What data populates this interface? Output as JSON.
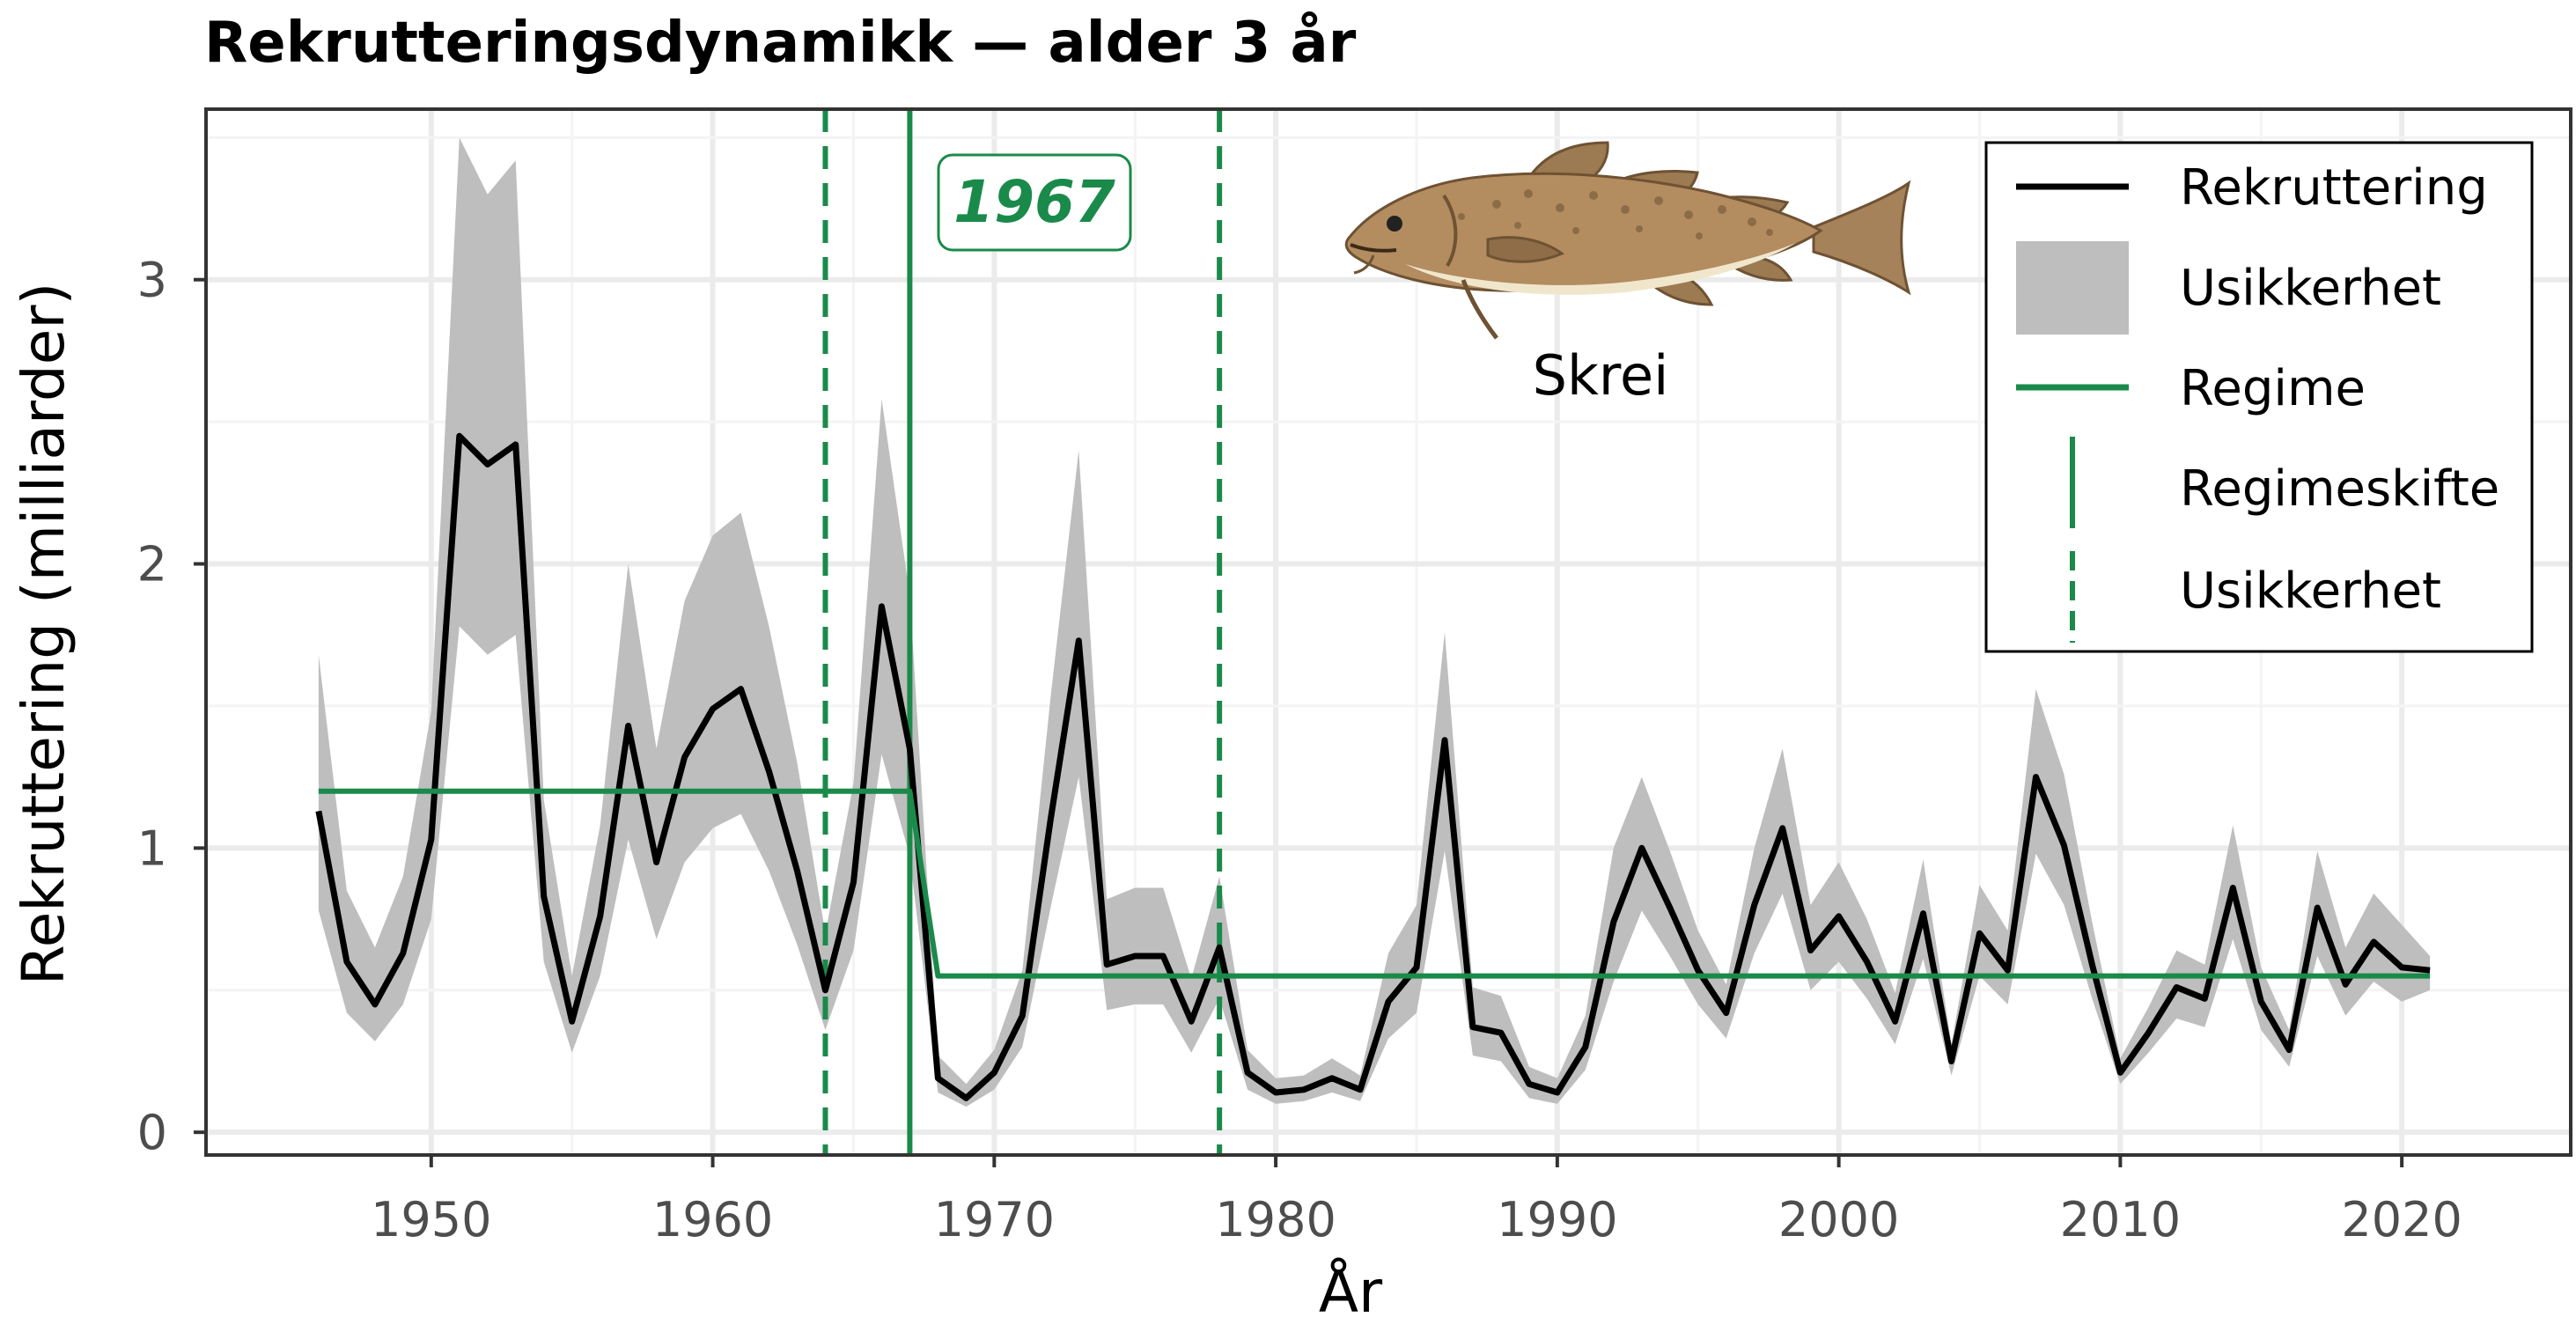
{
  "chart_data": {
    "type": "line",
    "title": "Rekrutteringsdynamikk — alder 3 år",
    "xlabel": "År",
    "ylabel": "Rekruttering (milliarder)",
    "xlim": [
      1942,
      2026
    ],
    "ylim": [
      -0.08,
      3.6
    ],
    "x_ticks": [
      1950,
      1960,
      1970,
      1980,
      1990,
      2000,
      2010,
      2020
    ],
    "y_ticks": [
      0,
      1,
      2,
      3
    ],
    "grid": true,
    "legend_position": "top-right",
    "series": [
      {
        "name": "Rekruttering",
        "color": "#000000",
        "x": [
          1946,
          1947,
          1948,
          1949,
          1950,
          1951,
          1952,
          1953,
          1954,
          1955,
          1956,
          1957,
          1958,
          1959,
          1960,
          1961,
          1962,
          1963,
          1964,
          1965,
          1966,
          1967,
          1968,
          1969,
          1970,
          1971,
          1972,
          1973,
          1974,
          1975,
          1976,
          1977,
          1978,
          1979,
          1980,
          1981,
          1982,
          1983,
          1984,
          1985,
          1986,
          1987,
          1988,
          1989,
          1990,
          1991,
          1992,
          1993,
          1994,
          1995,
          1996,
          1997,
          1998,
          1999,
          2000,
          2001,
          2002,
          2003,
          2004,
          2005,
          2006,
          2007,
          2008,
          2009,
          2010,
          2011,
          2012,
          2013,
          2014,
          2015,
          2016,
          2017,
          2018,
          2019,
          2020,
          2021
        ],
        "y": [
          1.13,
          0.6,
          0.45,
          0.63,
          1.03,
          2.45,
          2.35,
          2.42,
          0.83,
          0.39,
          0.76,
          1.43,
          0.95,
          1.32,
          1.49,
          1.56,
          1.27,
          0.92,
          0.5,
          0.88,
          1.85,
          1.35,
          0.19,
          0.12,
          0.21,
          0.41,
          1.1,
          1.73,
          0.59,
          0.62,
          0.62,
          0.39,
          0.65,
          0.21,
          0.14,
          0.15,
          0.19,
          0.15,
          0.46,
          0.58,
          1.38,
          0.37,
          0.35,
          0.17,
          0.14,
          0.3,
          0.74,
          1.0,
          0.79,
          0.57,
          0.42,
          0.8,
          1.07,
          0.64,
          0.76,
          0.6,
          0.39,
          0.77,
          0.25,
          0.7,
          0.57,
          1.25,
          1.01,
          0.59,
          0.21,
          0.35,
          0.51,
          0.47,
          0.86,
          0.46,
          0.29,
          0.79,
          0.52,
          0.67,
          0.58,
          0.57
        ]
      },
      {
        "name": "Usikkerhet",
        "color": "#bebebe",
        "x": [
          1946,
          1947,
          1948,
          1949,
          1950,
          1951,
          1952,
          1953,
          1954,
          1955,
          1956,
          1957,
          1958,
          1959,
          1960,
          1961,
          1962,
          1963,
          1964,
          1965,
          1966,
          1967,
          1968,
          1969,
          1970,
          1971,
          1972,
          1973,
          1974,
          1975,
          1976,
          1977,
          1978,
          1979,
          1980,
          1981,
          1982,
          1983,
          1984,
          1985,
          1986,
          1987,
          1988,
          1989,
          1990,
          1991,
          1992,
          1993,
          1994,
          1995,
          1996,
          1997,
          1998,
          1999,
          2000,
          2001,
          2002,
          2003,
          2004,
          2005,
          2006,
          2007,
          2008,
          2009,
          2010,
          2011,
          2012,
          2013,
          2014,
          2015,
          2016,
          2017,
          2018,
          2019,
          2020,
          2021
        ],
        "lower": [
          0.78,
          0.42,
          0.32,
          0.45,
          0.75,
          1.78,
          1.68,
          1.75,
          0.6,
          0.28,
          0.55,
          1.03,
          0.68,
          0.95,
          1.07,
          1.12,
          0.92,
          0.66,
          0.36,
          0.64,
          1.33,
          0.97,
          0.14,
          0.09,
          0.15,
          0.3,
          0.79,
          1.25,
          0.43,
          0.45,
          0.45,
          0.28,
          0.47,
          0.15,
          0.1,
          0.11,
          0.14,
          0.11,
          0.33,
          0.42,
          0.99,
          0.27,
          0.25,
          0.12,
          0.1,
          0.22,
          0.53,
          0.78,
          0.62,
          0.45,
          0.33,
          0.63,
          0.84,
          0.5,
          0.6,
          0.47,
          0.31,
          0.61,
          0.2,
          0.55,
          0.45,
          0.98,
          0.8,
          0.47,
          0.17,
          0.28,
          0.4,
          0.37,
          0.68,
          0.36,
          0.23,
          0.62,
          0.41,
          0.53,
          0.46,
          0.5
        ],
        "upper": [
          1.68,
          0.85,
          0.65,
          0.9,
          1.48,
          3.5,
          3.3,
          3.42,
          1.17,
          0.55,
          1.08,
          2.0,
          1.35,
          1.87,
          2.1,
          2.18,
          1.78,
          1.3,
          0.7,
          1.23,
          2.58,
          1.89,
          0.27,
          0.17,
          0.29,
          0.57,
          1.53,
          2.4,
          0.82,
          0.86,
          0.86,
          0.54,
          0.9,
          0.29,
          0.19,
          0.2,
          0.26,
          0.2,
          0.63,
          0.8,
          1.76,
          0.51,
          0.48,
          0.23,
          0.19,
          0.41,
          1.0,
          1.25,
          0.99,
          0.71,
          0.52,
          1.0,
          1.35,
          0.8,
          0.95,
          0.75,
          0.49,
          0.96,
          0.31,
          0.87,
          0.71,
          1.56,
          1.26,
          0.74,
          0.26,
          0.44,
          0.64,
          0.59,
          1.08,
          0.58,
          0.36,
          0.99,
          0.65,
          0.84,
          0.73,
          0.62
        ]
      },
      {
        "name": "Regime",
        "color": "#1a8a4a",
        "x": [
          1946,
          1967,
          1968,
          2021
        ],
        "y": [
          1.2,
          1.2,
          0.55,
          0.55
        ]
      }
    ],
    "regime_shift": {
      "name": "Regimeskifte",
      "x": 1967,
      "color": "#1a8a4a"
    },
    "shift_uncertainty": {
      "name": "Usikkerhet",
      "x": [
        1964,
        1978
      ],
      "color": "#1a8a4a"
    },
    "annotation": {
      "text": "1967",
      "x": 1967
    },
    "image_label": "Skrei"
  }
}
